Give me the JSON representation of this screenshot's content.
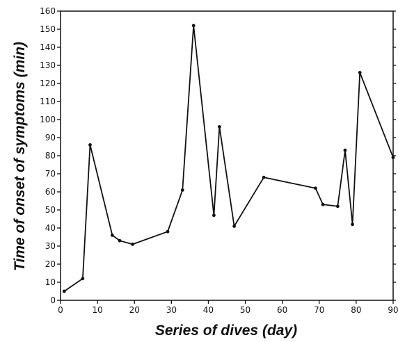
{
  "chart_data": {
    "type": "line",
    "title": "",
    "xlabel": "Series of dives (day)",
    "ylabel": "Time of onset of symptoms (min)",
    "xlim": [
      0,
      90
    ],
    "ylim": [
      0,
      160
    ],
    "xticks": [
      0,
      10,
      20,
      30,
      40,
      50,
      60,
      70,
      80,
      90
    ],
    "yticks": [
      0,
      10,
      20,
      30,
      40,
      50,
      60,
      70,
      80,
      90,
      100,
      110,
      120,
      130,
      140,
      150,
      160
    ],
    "grid": false,
    "legend": "none",
    "series": [
      {
        "x": [
          1,
          6,
          8,
          14,
          16,
          19.5,
          29,
          33,
          36,
          41.5,
          43,
          47,
          55,
          69,
          71,
          75,
          77,
          79,
          81,
          90
        ],
        "y": [
          5,
          12,
          86,
          36,
          33,
          31,
          38,
          61,
          152,
          47,
          96,
          41,
          68,
          62,
          53,
          52,
          83,
          42,
          126,
          79
        ],
        "color": "#111111"
      }
    ]
  }
}
